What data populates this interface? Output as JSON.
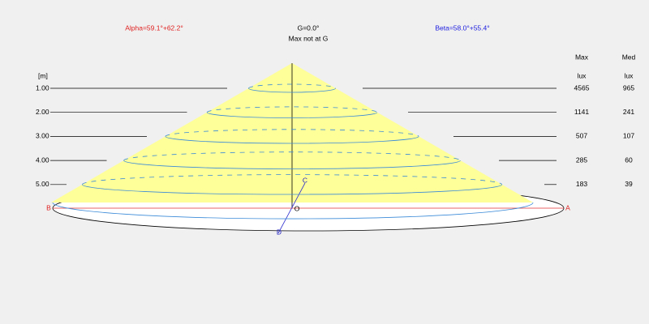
{
  "header": {
    "alpha": "Alpha=59.1°+62.2°",
    "gamma": "G=0.0°",
    "note": "Max not at G",
    "beta": "Beta=58.0°+55.4°"
  },
  "table": {
    "height_unit": "[m]",
    "columns": [
      "Max",
      "Med"
    ],
    "units": [
      "lux",
      "lux"
    ],
    "rows": [
      [
        "1.00",
        "4565",
        "965"
      ],
      [
        "2.00",
        "1141",
        "241"
      ],
      [
        "3.00",
        "507",
        "107"
      ],
      [
        "4.00",
        "285",
        "60"
      ],
      [
        "5.00",
        "183",
        "39"
      ]
    ]
  },
  "points": {
    "a": "A",
    "b": "B",
    "c": "C",
    "d": "D",
    "o": "O"
  }
}
